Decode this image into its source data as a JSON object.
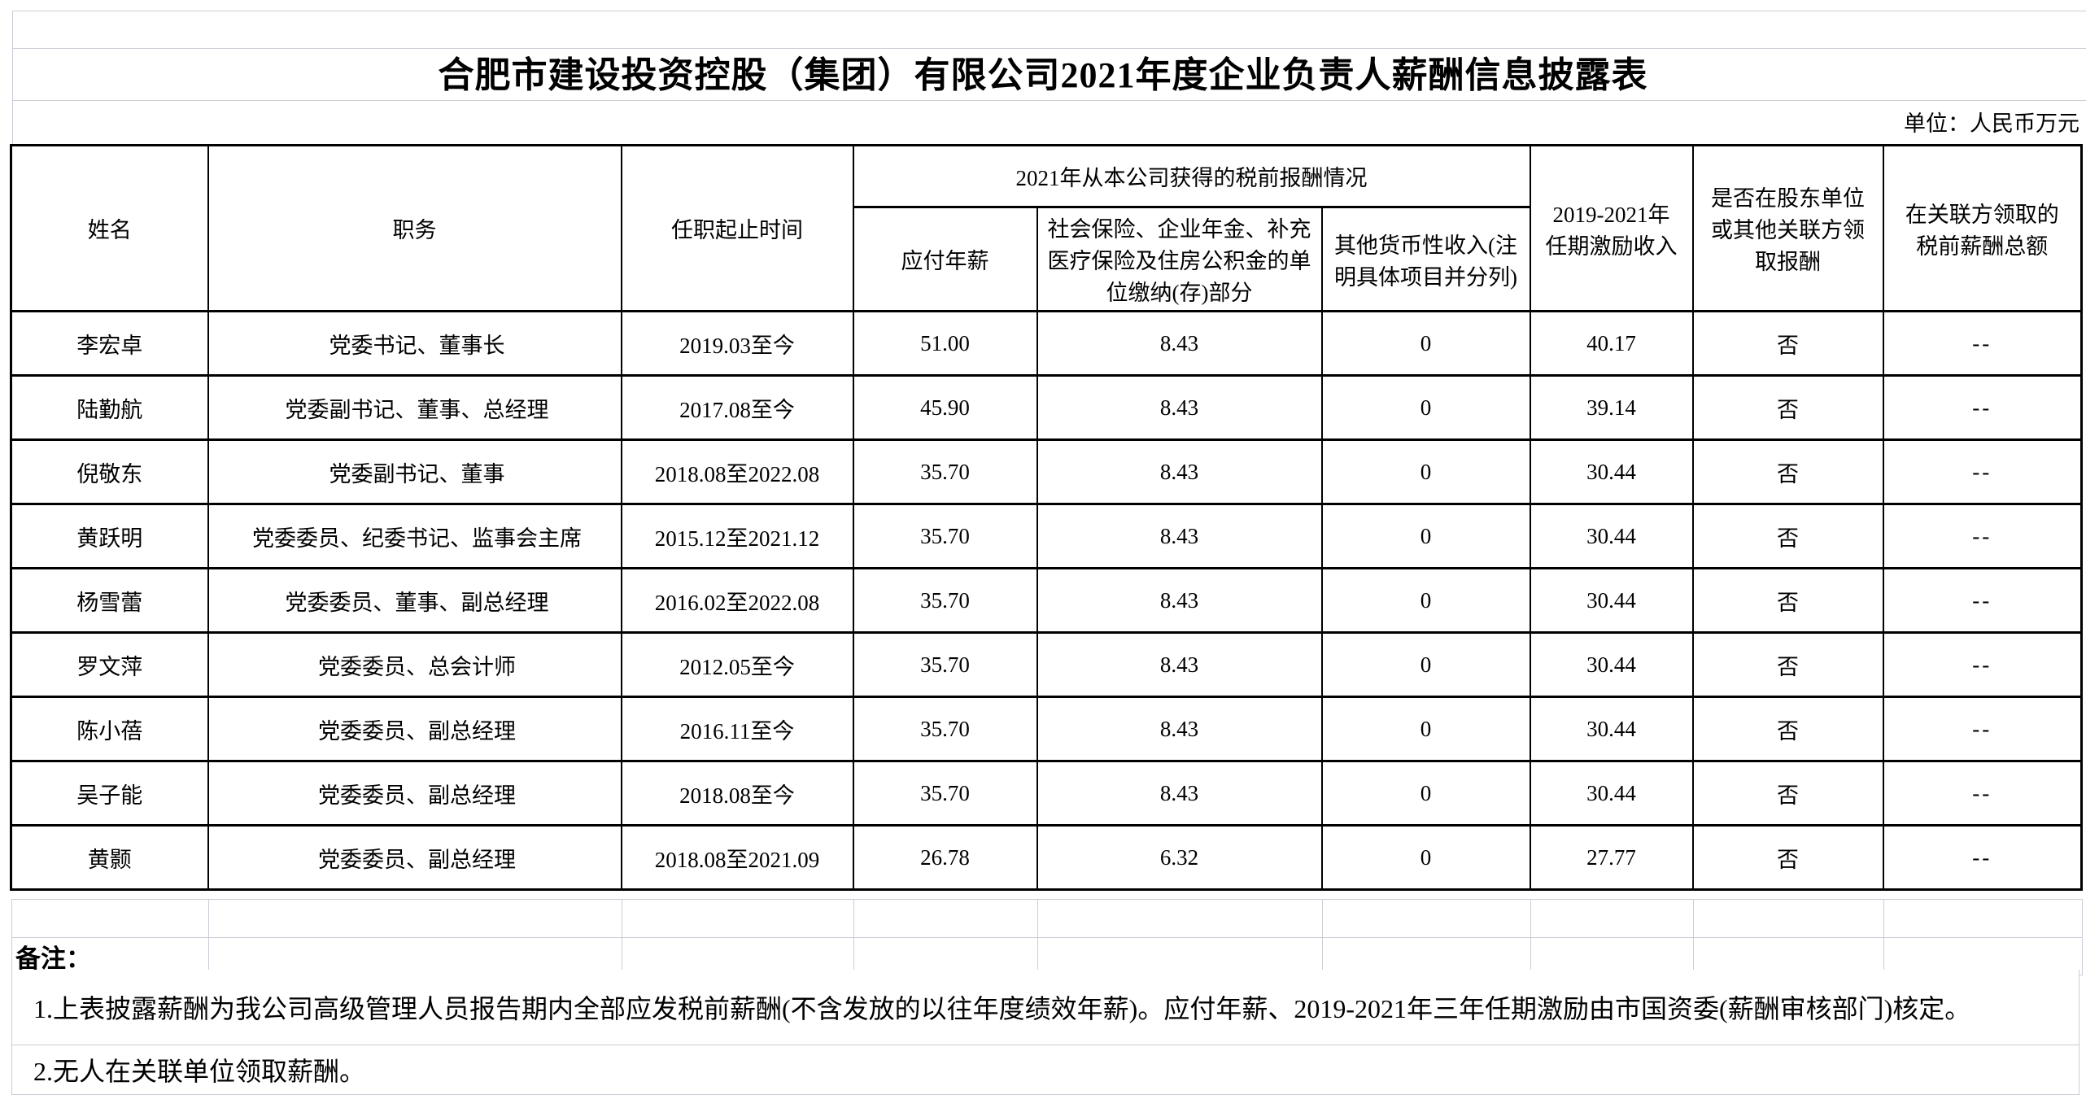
{
  "sheet": {
    "title": "合肥市建设投资控股（集团）有限公司2021年度企业负责人薪酬信息披露表",
    "unit_label": "单位：人民币万元"
  },
  "colors": {
    "table_border": "#000000",
    "gridline_gray": "#c9cdd4",
    "cell_flag_green": "#217346"
  },
  "table": {
    "headers": {
      "name": "姓名",
      "position": "职务",
      "term": "任职起止时间",
      "pretax_2021_group": "2021年从本公司获得的税前报酬情况",
      "payable_salary": "应付年薪",
      "social_insurance": "社会保险、企业年金、补充医疗保险及住房公积金的单位缴纳(存)部分",
      "other_monetary_income": "其他货币性收入(注明具体项目并分列)",
      "term_incentive": "2019-2021年任期激励收入",
      "paid_by_related": "是否在股东单位或其他关联方领取报酬",
      "related_pretax_total": "在关联方领取的税前薪酬总额"
    },
    "rows": [
      {
        "name": "李宏卓",
        "position": "党委书记、董事长",
        "term": "2019.03至今",
        "salary": "51.00",
        "insurance": "8.43",
        "other_income": "0",
        "incentive": "40.17",
        "related_flag": "否",
        "related_total": "--"
      },
      {
        "name": "陆勤航",
        "position": "党委副书记、董事、总经理",
        "term": "2017.08至今",
        "salary": "45.90",
        "insurance": "8.43",
        "other_income": "0",
        "incentive": "39.14",
        "related_flag": "否",
        "related_total": "--"
      },
      {
        "name": "倪敬东",
        "position": "党委副书记、董事",
        "term": "2018.08至2022.08",
        "salary": "35.70",
        "insurance": "8.43",
        "other_income": "0",
        "incentive": "30.44",
        "related_flag": "否",
        "related_total": "--"
      },
      {
        "name": "黄跃明",
        "position": "党委委员、纪委书记、监事会主席",
        "term": "2015.12至2021.12",
        "salary": "35.70",
        "insurance": "8.43",
        "other_income": "0",
        "incentive": "30.44",
        "related_flag": "否",
        "related_total": "--"
      },
      {
        "name": "杨雪蕾",
        "position": "党委委员、董事、副总经理",
        "term": "2016.02至2022.08",
        "salary": "35.70",
        "insurance": "8.43",
        "other_income": "0",
        "incentive": "30.44",
        "related_flag": "否",
        "related_total": "--"
      },
      {
        "name": "罗文萍",
        "position": "党委委员、总会计师",
        "term": "2012.05至今",
        "salary": "35.70",
        "insurance": "8.43",
        "other_income": "0",
        "incentive": "30.44",
        "related_flag": "否",
        "related_total": "--"
      },
      {
        "name": "陈小蓓",
        "position": "党委委员、副总经理",
        "term": "2016.11至今",
        "salary": "35.70",
        "insurance": "8.43",
        "other_income": "0",
        "incentive": "30.44",
        "related_flag": "否",
        "related_total": "--"
      },
      {
        "name": "吴子能",
        "position": "党委委员、副总经理",
        "term": "2018.08至今",
        "salary": "35.70",
        "insurance": "8.43",
        "other_income": "0",
        "incentive": "30.44",
        "related_flag": "否",
        "related_total": "--"
      },
      {
        "name": "黄颢",
        "position": "党委委员、副总经理",
        "term": "2018.08至2021.09",
        "salary": "26.78",
        "insurance": "6.32",
        "other_income": "0",
        "incentive": "27.77",
        "related_flag": "否",
        "related_total": "--"
      }
    ]
  },
  "notes": {
    "label": "备注：",
    "items": [
      "1.上表披露薪酬为我公司高级管理人员报告期内全部应发税前薪酬(不含发放的以往年度绩效年薪)。应付年薪、2019-2021年三年任期激励由市国资委(薪酬审核部门)核定。",
      "2.无人在关联单位领取薪酬。"
    ]
  }
}
